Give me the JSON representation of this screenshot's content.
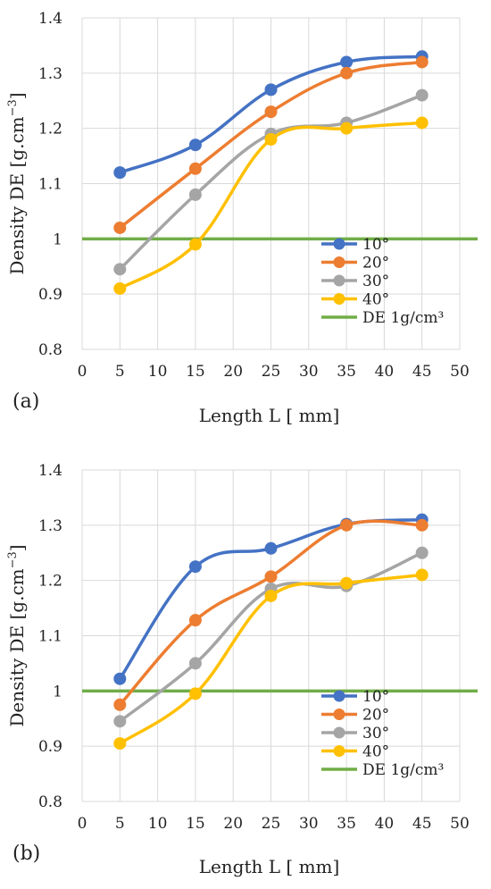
{
  "chart_data": [
    {
      "type": "line",
      "panel_label": "(a)",
      "xlabel": "Length L [ mm]",
      "ylabel_main": "Density DE [g.cm",
      "ylabel_sup": "−3",
      "ylabel_end": "]",
      "xlim": [
        0,
        50
      ],
      "ylim": [
        0.8,
        1.4
      ],
      "xticks": [
        "0",
        "5",
        "10",
        "15",
        "20",
        "25",
        "30",
        "35",
        "40",
        "45",
        "50"
      ],
      "yticks": [
        "0.8",
        "0.9",
        "1",
        "1.1",
        "1.2",
        "1.3",
        "1.4"
      ],
      "grid": true,
      "legend_position": "lower-right",
      "x": [
        5,
        15,
        25,
        35,
        45
      ],
      "series": [
        {
          "name": "10°",
          "color": "#4472C4",
          "values": [
            1.12,
            1.17,
            1.27,
            1.32,
            1.33
          ]
        },
        {
          "name": "20°",
          "color": "#ED7D31",
          "values": [
            1.02,
            1.127,
            1.23,
            1.3,
            1.32
          ]
        },
        {
          "name": "30°",
          "color": "#A5A5A5",
          "values": [
            0.945,
            1.08,
            1.19,
            1.21,
            1.26
          ]
        },
        {
          "name": "40°",
          "color": "#FFC000",
          "values": [
            0.91,
            0.99,
            1.18,
            1.2,
            1.21
          ]
        }
      ],
      "reference_line": {
        "name": "DE 1g/cm³",
        "color": "#70AD47",
        "value": 1.0
      }
    },
    {
      "type": "line",
      "panel_label": "(b)",
      "xlabel": "Length L [ mm]",
      "ylabel_main": "Density DE [g.cm",
      "ylabel_sup": "−3",
      "ylabel_end": "]",
      "xlim": [
        0,
        50
      ],
      "ylim": [
        0.8,
        1.4
      ],
      "xticks": [
        "0",
        "5",
        "10",
        "15",
        "20",
        "25",
        "30",
        "35",
        "40",
        "45",
        "50"
      ],
      "yticks": [
        "0.8",
        "0.9",
        "1",
        "1.1",
        "1.2",
        "1.3",
        "1.4"
      ],
      "grid": true,
      "legend_position": "lower-right",
      "x": [
        5,
        15,
        25,
        35,
        45
      ],
      "series": [
        {
          "name": "10°",
          "color": "#4472C4",
          "values": [
            1.022,
            1.225,
            1.258,
            1.302,
            1.31
          ]
        },
        {
          "name": "20°",
          "color": "#ED7D31",
          "values": [
            0.975,
            1.128,
            1.207,
            1.3,
            1.3
          ]
        },
        {
          "name": "30°",
          "color": "#A5A5A5",
          "values": [
            0.945,
            1.05,
            1.185,
            1.19,
            1.25
          ]
        },
        {
          "name": "40°",
          "color": "#FFC000",
          "values": [
            0.905,
            0.995,
            1.172,
            1.195,
            1.21
          ]
        }
      ],
      "reference_line": {
        "name": "DE 1g/cm³",
        "color": "#70AD47",
        "value": 1.0
      }
    }
  ]
}
